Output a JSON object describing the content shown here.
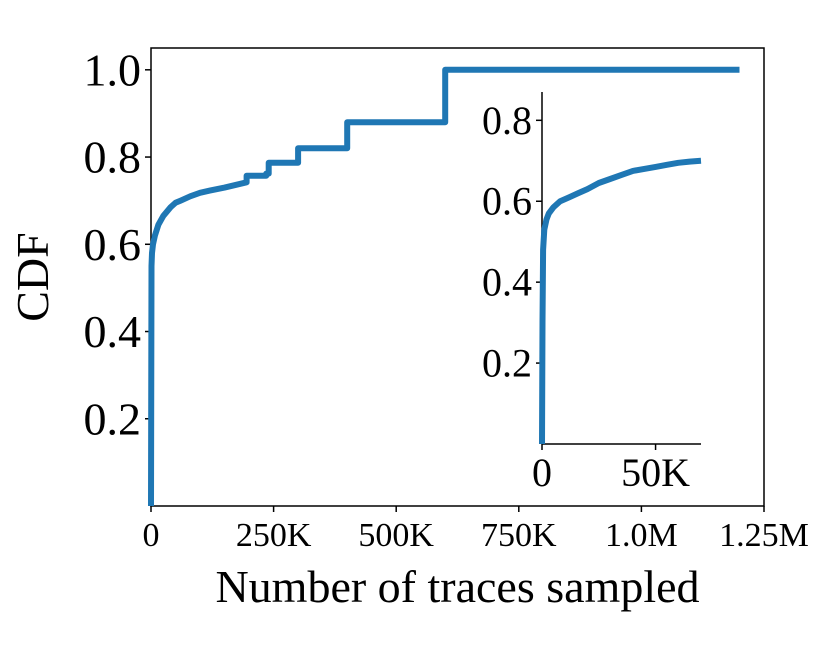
{
  "chart_data": [
    {
      "type": "line",
      "title": "",
      "xlabel": "Number of traces sampled",
      "ylabel": "CDF",
      "xlim": [
        0,
        1250000
      ],
      "ylim": [
        0,
        1.05
      ],
      "x_ticks": [
        {
          "value": 0,
          "label": "0"
        },
        {
          "value": 250000,
          "label": "250K"
        },
        {
          "value": 500000,
          "label": "500K"
        },
        {
          "value": 750000,
          "label": "750K"
        },
        {
          "value": 1000000,
          "label": "1.0M"
        },
        {
          "value": 1250000,
          "label": "1.25M"
        }
      ],
      "y_ticks": [
        {
          "value": 0.2,
          "label": "0.2"
        },
        {
          "value": 0.4,
          "label": "0.4"
        },
        {
          "value": 0.6,
          "label": "0.6"
        },
        {
          "value": 0.8,
          "label": "0.8"
        },
        {
          "value": 1.0,
          "label": "1.0"
        }
      ],
      "grid": false,
      "color": "#1f77b4",
      "series": [
        {
          "x": [
            0,
            1000,
            2000,
            4000,
            8000,
            15000,
            25000,
            40000,
            50000,
            60000,
            80000,
            100000,
            120000,
            150000,
            180000,
            195000,
            195000,
            235000,
            235000,
            240000,
            240000,
            300000,
            300000,
            400000,
            400000,
            600000,
            600000,
            1200000
          ],
          "y": [
            0,
            0.55,
            0.58,
            0.6,
            0.62,
            0.645,
            0.665,
            0.685,
            0.695,
            0.7,
            0.71,
            0.718,
            0.723,
            0.73,
            0.738,
            0.742,
            0.757,
            0.757,
            0.762,
            0.762,
            0.787,
            0.787,
            0.82,
            0.82,
            0.88,
            0.88,
            1.0,
            1.0
          ]
        }
      ]
    },
    {
      "type": "line",
      "title": "",
      "xlabel": "",
      "ylabel": "",
      "xlim": [
        0,
        70000
      ],
      "ylim": [
        0,
        0.87
      ],
      "x_ticks": [
        {
          "value": 0,
          "label": "0"
        },
        {
          "value": 50000,
          "label": "50K"
        }
      ],
      "y_ticks": [
        {
          "value": 0.2,
          "label": "0.2"
        },
        {
          "value": 0.4,
          "label": "0.4"
        },
        {
          "value": 0.6,
          "label": "0.6"
        },
        {
          "value": 0.8,
          "label": "0.8"
        }
      ],
      "grid": false,
      "color": "#1f77b4",
      "series": [
        {
          "x": [
            0,
            200,
            500,
            1000,
            2000,
            3000,
            5000,
            8000,
            12000,
            16000,
            20000,
            25000,
            30000,
            35000,
            40000,
            45000,
            50000,
            55000,
            60000,
            65000,
            70000
          ],
          "y": [
            0,
            0.3,
            0.48,
            0.53,
            0.555,
            0.57,
            0.585,
            0.6,
            0.61,
            0.62,
            0.63,
            0.645,
            0.655,
            0.665,
            0.675,
            0.68,
            0.685,
            0.69,
            0.695,
            0.698,
            0.7
          ]
        }
      ]
    }
  ]
}
